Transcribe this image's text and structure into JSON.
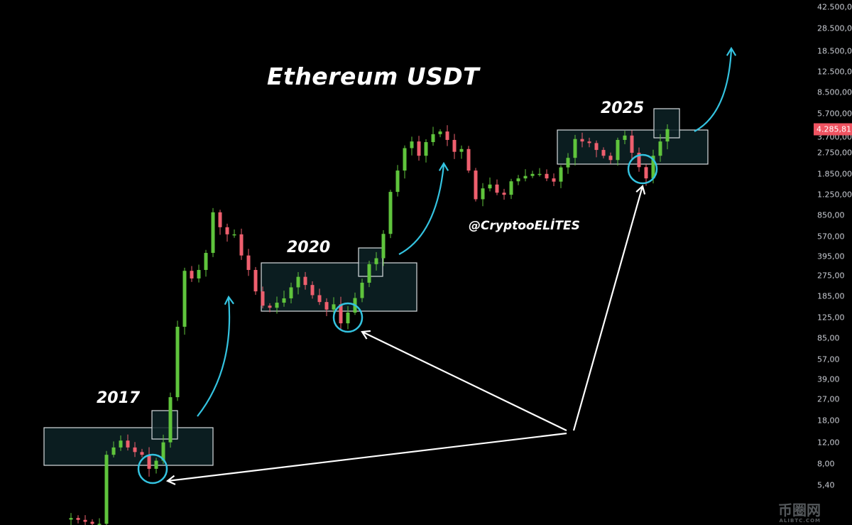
{
  "chart_data": {
    "type": "candlestick",
    "title": "Ethereum USDT",
    "yscale": "log",
    "ylim": [
      2.6,
      42500
    ],
    "grid": false,
    "y_ticks": [
      "42.500,00",
      "28.500,00",
      "18.500,00",
      "12.500,00",
      "8.500,00",
      "5.700,00",
      "3.700,00",
      "2.750,00",
      "1.850,00",
      "1.250,00",
      "850,00",
      "570,00",
      "395,00",
      "275,00",
      "185,00",
      "125,00",
      "85,00",
      "57,00",
      "39,00",
      "27,00",
      "18,00",
      "12,00",
      "8,00",
      "5,40"
    ],
    "last_price": "4.285,81",
    "closes": [
      2.9,
      2.8,
      2.7,
      2.6,
      2.6,
      9.5,
      10.9,
      12.4,
      10.9,
      10,
      9.5,
      7.3,
      8.5,
      12,
      28,
      105,
      300,
      260,
      305,
      420,
      900,
      680,
      595,
      595,
      400,
      305,
      204,
      156,
      150,
      165,
      179,
      220,
      268,
      230,
      190,
      167,
      145,
      160,
      112,
      137,
      180,
      240,
      340,
      380,
      600,
      1320,
      1970,
      3000,
      3400,
      2600,
      3360,
      3900,
      4100,
      3500,
      2800,
      2950,
      1970,
      1150,
      1410,
      1515,
      1300,
      1250,
      1610,
      1700,
      1780,
      1850,
      1850,
      1700,
      1600,
      2090,
      2500,
      3560,
      3400,
      3300,
      2900,
      2600,
      2400,
      3500,
      3800,
      2750,
      2100,
      1700,
      2600,
      3400,
      4285.81
    ],
    "annotations": {
      "years": [
        "2017",
        "2020",
        "2025"
      ],
      "handle": "@CryptooELİTES"
    },
    "colors": {
      "up": "#5fc43c",
      "down": "#ee5f6e",
      "highlight": "#34c3e0",
      "zone": "#0d2226",
      "badge": "#ef5361"
    }
  },
  "watermark": {
    "logo": "币圈网",
    "site": "ALIBTC.COM"
  }
}
